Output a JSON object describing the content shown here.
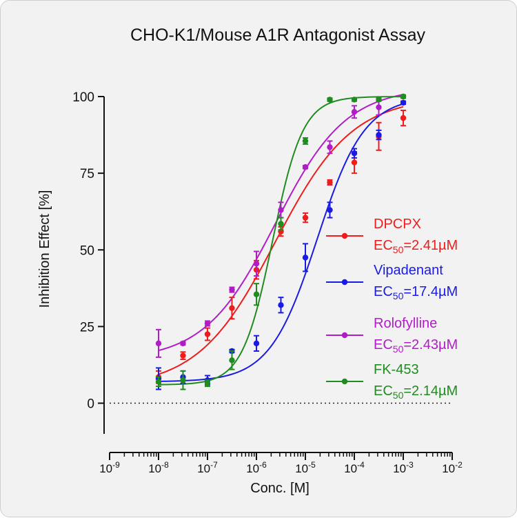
{
  "chart_data": {
    "type": "scatter",
    "title": "CHO-K1/Mouse A1R Antagonist Assay",
    "xlabel": "Conc. [M]",
    "ylabel": "Inhibition Effect [%]",
    "xscale": "log",
    "xlim": [
      1e-09,
      0.01
    ],
    "ylim": [
      -10,
      100
    ],
    "x_tick_labels": [
      {
        "base": "10",
        "exp": "-9"
      },
      {
        "base": "10",
        "exp": "-8"
      },
      {
        "base": "10",
        "exp": "-7"
      },
      {
        "base": "10",
        "exp": "-6"
      },
      {
        "base": "10",
        "exp": "-5"
      },
      {
        "base": "10",
        "exp": "-4"
      },
      {
        "base": "10",
        "exp": "-3"
      },
      {
        "base": "10",
        "exp": "-2"
      }
    ],
    "y_ticks": [
      0,
      25,
      50,
      75,
      100
    ],
    "y_tick_labels": [
      "0",
      "25",
      "50",
      "75",
      "100"
    ],
    "baseline": 0,
    "grid": false,
    "legend_position": "right",
    "x": [
      1e-08,
      3.16e-08,
      1e-07,
      3.16e-07,
      1e-06,
      3.16e-06,
      1e-05,
      3.16e-05,
      0.0001,
      0.000316,
      0.001
    ],
    "series": [
      {
        "name": "DPCPX",
        "ec50_prefix": "EC",
        "ec50_sub": "50",
        "ec50_value": "=2.41µM",
        "color": "#ee1c1c",
        "y": [
          8.5,
          15.5,
          22.5,
          31,
          43.5,
          56,
          60.5,
          72,
          78.5,
          87,
          93
        ],
        "err": [
          2,
          1.2,
          2,
          3.5,
          3,
          1.5,
          1.5,
          0.8,
          3.5,
          4.5,
          2.5
        ],
        "fit": {
          "bottom": 5,
          "top": 100,
          "ec50": 2.41e-06,
          "hill": 0.55
        }
      },
      {
        "name": "Vipadenant",
        "ec50_prefix": "EC",
        "ec50_sub": "50",
        "ec50_value": "=17.4µM",
        "color": "#1a1ae6",
        "y": [
          8,
          8.5,
          7.5,
          17,
          19.5,
          32,
          47.5,
          63,
          81.5,
          87.5,
          98
        ],
        "err": [
          3.5,
          2,
          1.5,
          0.5,
          2.5,
          2.5,
          4.5,
          2.5,
          1.5,
          1.5,
          0.5
        ],
        "fit": {
          "bottom": 7,
          "top": 100,
          "ec50": 1.74e-05,
          "hill": 0.9
        }
      },
      {
        "name": "Rolofylline",
        "ec50_prefix": "EC",
        "ec50_sub": "50",
        "ec50_value": "=2.43µM",
        "color": "#b21cc8",
        "y": [
          19.5,
          19.5,
          26,
          37,
          45.5,
          63,
          77,
          83.5,
          95,
          96.5,
          100
        ],
        "err": [
          4.5,
          0.5,
          0.8,
          0.8,
          4,
          2.5,
          0.5,
          2,
          2,
          2.5,
          0.5
        ],
        "fit": {
          "bottom": 14,
          "top": 103,
          "ec50": 2.43e-06,
          "hill": 0.6
        }
      },
      {
        "name": "FK-453",
        "ec50_prefix": "EC",
        "ec50_sub": "50",
        "ec50_value": "=2.14µM",
        "color": "#1e8c1e",
        "y": [
          7,
          7.5,
          6.5,
          14,
          35.5,
          58.5,
          85.5,
          99,
          99,
          99,
          100
        ],
        "err": [
          1.5,
          3,
          1,
          3,
          3.5,
          2,
          1,
          0.5,
          0.5,
          0.5,
          0.5
        ],
        "fit": {
          "bottom": 6,
          "top": 100,
          "ec50": 2.14e-06,
          "hill": 1.4
        }
      }
    ]
  }
}
